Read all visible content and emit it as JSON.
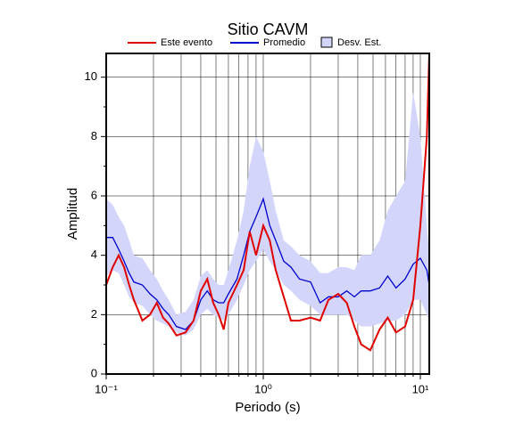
{
  "chart_data": {
    "type": "line",
    "title": "Sitio CAVM",
    "x_label": "Periodo (s)",
    "y_label": "Amplitud",
    "log_x": true,
    "grid": true,
    "xlim": [
      0.1,
      11.4
    ],
    "ylim": [
      0,
      10.8
    ],
    "xticks": [
      {
        "value": 0.1,
        "label": "10⁻¹"
      },
      {
        "value": 1,
        "label": "10⁰"
      },
      {
        "value": 10,
        "label": "10¹"
      }
    ],
    "x_minor_ticks": [
      0.2,
      0.3,
      0.4,
      0.5,
      0.6,
      0.7,
      0.8,
      0.9,
      2,
      3,
      4,
      5,
      6,
      7,
      8,
      9
    ],
    "yticks": [
      0,
      2,
      4,
      6,
      8,
      10
    ],
    "y_minor_ticks": [
      1,
      3,
      5,
      7,
      9
    ],
    "x": [
      0.1,
      0.11,
      0.12,
      0.13,
      0.14,
      0.15,
      0.17,
      0.19,
      0.21,
      0.23,
      0.25,
      0.28,
      0.32,
      0.36,
      0.4,
      0.44,
      0.48,
      0.52,
      0.56,
      0.6,
      0.68,
      0.75,
      0.82,
      0.9,
      1.0,
      1.1,
      1.2,
      1.35,
      1.5,
      1.7,
      2.0,
      2.3,
      2.6,
      3.0,
      3.4,
      3.8,
      4.2,
      4.8,
      5.5,
      6.2,
      7.0,
      8.0,
      9.0,
      10.0,
      11.0,
      11.4
    ],
    "series": [
      {
        "name": "Desv. Est.",
        "color": "#d3d6fa",
        "lower": [
          3.3,
          3.5,
          3.4,
          3.0,
          2.6,
          2.4,
          2.3,
          2.0,
          1.8,
          1.7,
          1.6,
          1.4,
          1.3,
          1.5,
          2.0,
          2.2,
          2.0,
          1.9,
          1.8,
          2.0,
          2.5,
          3.0,
          3.5,
          3.8,
          4.2,
          3.8,
          3.5,
          3.0,
          2.8,
          2.5,
          2.3,
          2.0,
          2.0,
          2.0,
          2.0,
          1.8,
          1.6,
          1.6,
          1.7,
          1.8,
          1.8,
          2.0,
          2.5,
          2.5,
          2.0,
          1.8
        ],
        "upper": [
          5.9,
          5.7,
          5.3,
          5.0,
          4.5,
          4.0,
          3.9,
          3.5,
          3.2,
          2.8,
          2.5,
          2.0,
          2.1,
          2.5,
          3.3,
          3.5,
          3.2,
          3.0,
          3.0,
          3.5,
          4.5,
          5.5,
          7.0,
          8.0,
          7.5,
          6.5,
          5.5,
          4.5,
          4.3,
          4.0,
          3.8,
          3.4,
          3.4,
          3.6,
          3.6,
          3.5,
          4.0,
          4.0,
          4.5,
          5.5,
          6.0,
          6.5,
          9.5,
          8.0,
          5.0,
          4.0
        ]
      },
      {
        "name": "Promedio",
        "color": "#0000cc",
        "values": [
          4.6,
          4.6,
          4.2,
          3.8,
          3.4,
          3.1,
          3.0,
          2.7,
          2.5,
          2.2,
          2.0,
          1.6,
          1.5,
          1.8,
          2.5,
          2.8,
          2.5,
          2.4,
          2.4,
          2.7,
          3.2,
          4.0,
          4.8,
          5.3,
          5.9,
          5.0,
          4.5,
          3.8,
          3.6,
          3.2,
          3.1,
          2.4,
          2.6,
          2.6,
          2.8,
          2.6,
          2.8,
          2.8,
          2.9,
          3.3,
          2.9,
          3.2,
          3.7,
          3.9,
          3.5,
          3.0
        ]
      },
      {
        "name": "Este evento",
        "color": "#e00000",
        "values": [
          3.0,
          3.6,
          4.0,
          3.6,
          3.0,
          2.5,
          1.8,
          2.0,
          2.4,
          1.9,
          1.7,
          1.3,
          1.4,
          1.8,
          2.8,
          3.2,
          2.4,
          2.0,
          1.5,
          2.4,
          3.0,
          3.5,
          4.8,
          4.0,
          5.0,
          4.5,
          3.5,
          2.6,
          1.8,
          1.8,
          1.9,
          1.8,
          2.5,
          2.7,
          2.4,
          1.6,
          1.0,
          0.8,
          1.5,
          1.9,
          1.4,
          1.6,
          2.5,
          5.0,
          8.0,
          10.8
        ]
      }
    ]
  }
}
